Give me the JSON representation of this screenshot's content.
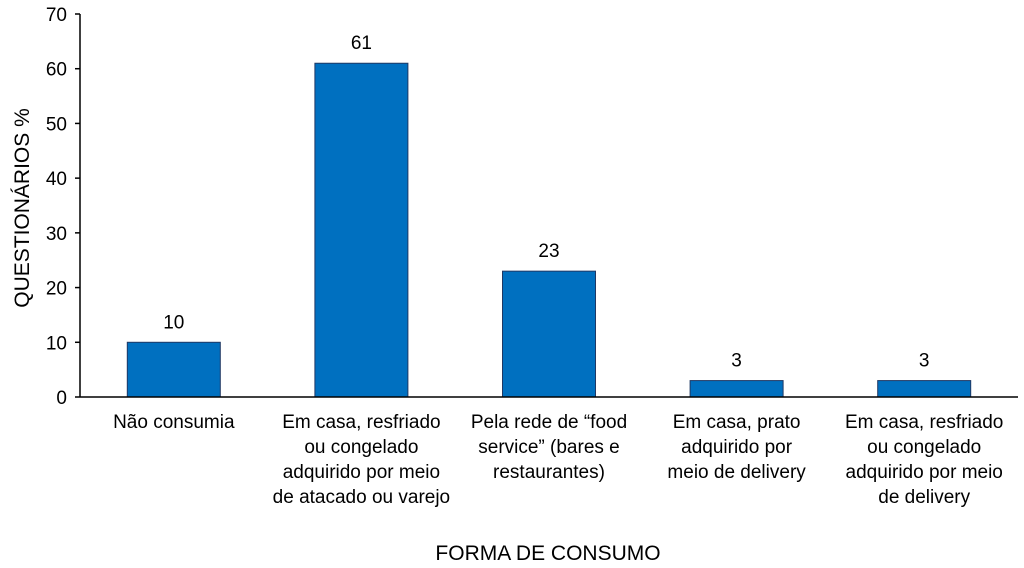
{
  "chart_data": {
    "type": "bar",
    "title": "",
    "xlabel": "FORMA DE CONSUMO",
    "ylabel": "QUESTIONÁRIOS  %",
    "ylim": [
      0,
      70
    ],
    "yticks": [
      0,
      10,
      20,
      30,
      40,
      50,
      60,
      70
    ],
    "grid": false,
    "legend": "none",
    "bar_color": "#0070C0",
    "categories": [
      [
        "Não consumia"
      ],
      [
        "Em casa, resfriado",
        "ou congelado",
        "adquirido por meio",
        "de atacado ou varejo"
      ],
      [
        "Pela rede de “food",
        "service” (bares e",
        "restaurantes)"
      ],
      [
        "Em casa, prato",
        "adquirido por",
        "meio de delivery"
      ],
      [
        "Em casa, resfriado",
        "ou congelado",
        "adquirido por meio",
        "de delivery"
      ]
    ],
    "values": [
      10,
      61,
      23,
      3,
      3
    ],
    "data_labels": [
      "10",
      "61",
      "23",
      "3",
      "3"
    ]
  }
}
